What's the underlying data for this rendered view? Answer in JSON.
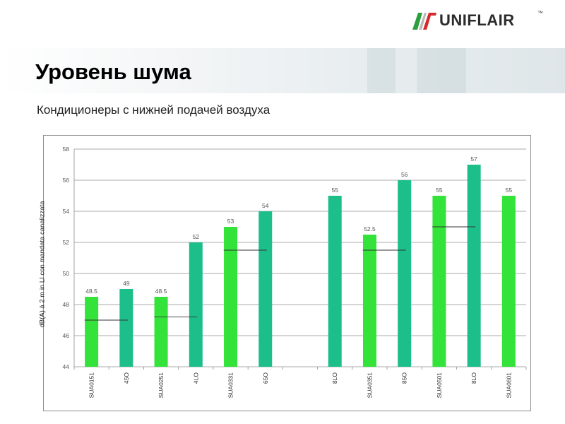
{
  "brand": {
    "name": "UNIFLAIR",
    "tm": "™",
    "colors": {
      "green": "#2e9e3e",
      "red": "#d62a2a",
      "grey": "#b9b9b9"
    }
  },
  "page": {
    "title": "Уровень шума",
    "subtitle": "Кондиционеры с нижней подачей воздуха"
  },
  "chart_data": {
    "type": "bar",
    "title": "",
    "xlabel": "",
    "ylabel": "dB(A) à 2 m in LI con mandata canalizzata",
    "ylim": [
      44,
      58
    ],
    "yticks": [
      "58",
      "56",
      "54",
      "52",
      "50",
      "48",
      "46",
      "44"
    ],
    "grid": true,
    "categories": [
      "SUA0151",
      "45O",
      "SUA0251",
      "4LO",
      "SUA0331",
      "65O",
      "",
      "8LO",
      "SUA0351",
      "85O",
      "SUA0501",
      "8LO",
      "SUA0601"
    ],
    "values": [
      48.5,
      49,
      48.5,
      52,
      53,
      54,
      null,
      55,
      52.5,
      56,
      55,
      57,
      55
    ],
    "data_labels": [
      "48.5",
      "49",
      "48.5",
      "52",
      "53",
      "54",
      "",
      "55",
      "52.5",
      "56",
      "55",
      "57",
      "55"
    ],
    "bar_colors": [
      "#33e33a",
      "#1cbf8a",
      "#33e33a",
      "#1cbf8a",
      "#33e33a",
      "#1cbf8a",
      null,
      "#1cbf8a",
      "#33e33a",
      "#1cbf8a",
      "#33e33a",
      "#1cbf8a",
      "#33e33a"
    ],
    "reference_lines": [
      {
        "between": [
          0,
          1
        ],
        "value": 47
      },
      {
        "between": [
          2,
          3
        ],
        "value": 47.2
      },
      {
        "between": [
          4,
          5
        ],
        "value": 51.5
      },
      {
        "between": [
          8,
          9
        ],
        "value": 51.5
      },
      {
        "between": [
          10,
          11
        ],
        "value": 53
      }
    ]
  }
}
